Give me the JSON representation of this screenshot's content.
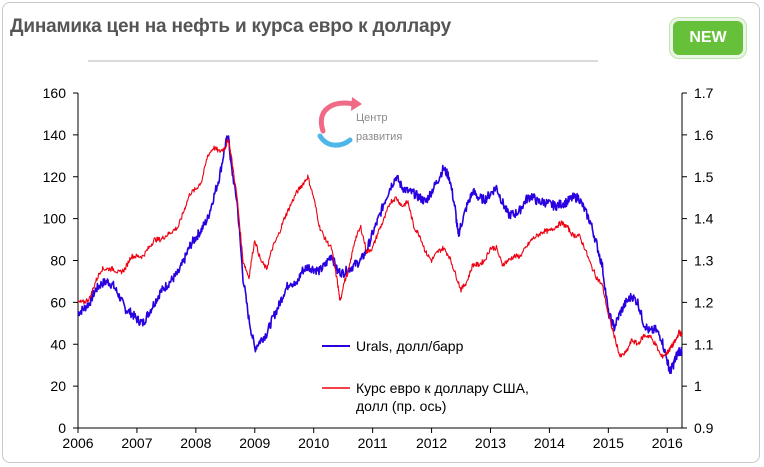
{
  "title": "Динамика цен на нефть и курса евро к доллару",
  "badge": "NEW",
  "watermark": {
    "line1": "Центр",
    "line2": "развития"
  },
  "colors": {
    "urals": "#2a00e0",
    "eur": "#ee0011",
    "badge": "#66c03a"
  },
  "chart_data": {
    "type": "line",
    "x_range": [
      2006.0,
      2016.25
    ],
    "x_ticks": [
      "2006",
      "2007",
      "2008",
      "2009",
      "2010",
      "2011",
      "2012",
      "2013",
      "2014",
      "2015",
      "2016"
    ],
    "y_left": {
      "range": [
        0,
        160
      ],
      "ticks": [
        "0",
        "20",
        "40",
        "60",
        "80",
        "100",
        "120",
        "140",
        "160"
      ]
    },
    "y_right": {
      "range": [
        0.9,
        1.7
      ],
      "ticks": [
        "0.9",
        "1",
        "1.1",
        "1.2",
        "1.3",
        "1.4",
        "1.5",
        "1.6",
        "1.7"
      ]
    },
    "series": [
      {
        "name": "Urals, долл/барр",
        "axis": "left",
        "color": "#2a00e0",
        "points": [
          [
            2006.0,
            55
          ],
          [
            2006.1,
            57
          ],
          [
            2006.2,
            60
          ],
          [
            2006.3,
            66
          ],
          [
            2006.4,
            69
          ],
          [
            2006.5,
            70
          ],
          [
            2006.6,
            68
          ],
          [
            2006.7,
            63
          ],
          [
            2006.8,
            57
          ],
          [
            2006.9,
            55
          ],
          [
            2007.0,
            52
          ],
          [
            2007.1,
            50
          ],
          [
            2007.2,
            55
          ],
          [
            2007.3,
            60
          ],
          [
            2007.4,
            65
          ],
          [
            2007.5,
            68
          ],
          [
            2007.6,
            71
          ],
          [
            2007.7,
            74
          ],
          [
            2007.8,
            80
          ],
          [
            2007.9,
            87
          ],
          [
            2008.0,
            91
          ],
          [
            2008.1,
            95
          ],
          [
            2008.2,
            100
          ],
          [
            2008.3,
            110
          ],
          [
            2008.4,
            120
          ],
          [
            2008.5,
            135
          ],
          [
            2008.55,
            140
          ],
          [
            2008.6,
            125
          ],
          [
            2008.7,
            108
          ],
          [
            2008.8,
            72
          ],
          [
            2008.9,
            52
          ],
          [
            2009.0,
            38
          ],
          [
            2009.1,
            42
          ],
          [
            2009.2,
            45
          ],
          [
            2009.3,
            52
          ],
          [
            2009.4,
            58
          ],
          [
            2009.5,
            65
          ],
          [
            2009.6,
            70
          ],
          [
            2009.7,
            68
          ],
          [
            2009.8,
            75
          ],
          [
            2009.9,
            77
          ],
          [
            2010.0,
            76
          ],
          [
            2010.1,
            75
          ],
          [
            2010.2,
            78
          ],
          [
            2010.3,
            83
          ],
          [
            2010.4,
            75
          ],
          [
            2010.5,
            74
          ],
          [
            2010.6,
            76
          ],
          [
            2010.7,
            78
          ],
          [
            2010.8,
            80
          ],
          [
            2010.9,
            85
          ],
          [
            2011.0,
            93
          ],
          [
            2011.1,
            100
          ],
          [
            2011.2,
            108
          ],
          [
            2011.3,
            115
          ],
          [
            2011.4,
            120
          ],
          [
            2011.5,
            115
          ],
          [
            2011.6,
            113
          ],
          [
            2011.7,
            112
          ],
          [
            2011.8,
            110
          ],
          [
            2011.9,
            108
          ],
          [
            2012.0,
            113
          ],
          [
            2012.1,
            118
          ],
          [
            2012.2,
            124
          ],
          [
            2012.3,
            120
          ],
          [
            2012.4,
            105
          ],
          [
            2012.45,
            92
          ],
          [
            2012.5,
            97
          ],
          [
            2012.6,
            106
          ],
          [
            2012.7,
            113
          ],
          [
            2012.8,
            110
          ],
          [
            2012.9,
            109
          ],
          [
            2013.0,
            112
          ],
          [
            2013.1,
            115
          ],
          [
            2013.2,
            108
          ],
          [
            2013.3,
            102
          ],
          [
            2013.4,
            102
          ],
          [
            2013.5,
            104
          ],
          [
            2013.6,
            109
          ],
          [
            2013.7,
            111
          ],
          [
            2013.8,
            108
          ],
          [
            2013.9,
            108
          ],
          [
            2014.0,
            107
          ],
          [
            2014.1,
            106
          ],
          [
            2014.2,
            107
          ],
          [
            2014.3,
            108
          ],
          [
            2014.4,
            110
          ],
          [
            2014.5,
            110
          ],
          [
            2014.6,
            104
          ],
          [
            2014.7,
            98
          ],
          [
            2014.8,
            88
          ],
          [
            2014.9,
            77
          ],
          [
            2015.0,
            55
          ],
          [
            2015.1,
            48
          ],
          [
            2015.2,
            55
          ],
          [
            2015.3,
            60
          ],
          [
            2015.4,
            63
          ],
          [
            2015.5,
            60
          ],
          [
            2015.6,
            50
          ],
          [
            2015.7,
            46
          ],
          [
            2015.8,
            47
          ],
          [
            2015.9,
            43
          ],
          [
            2016.0,
            32
          ],
          [
            2016.05,
            27
          ],
          [
            2016.1,
            30
          ],
          [
            2016.15,
            34
          ],
          [
            2016.2,
            37
          ],
          [
            2016.25,
            36
          ]
        ]
      },
      {
        "name": "Курс евро к доллару США, долл  (пр. ось)",
        "axis": "right",
        "color": "#ee0011",
        "points": [
          [
            2006.0,
            1.2
          ],
          [
            2006.1,
            1.2
          ],
          [
            2006.2,
            1.21
          ],
          [
            2006.3,
            1.25
          ],
          [
            2006.4,
            1.28
          ],
          [
            2006.5,
            1.28
          ],
          [
            2006.6,
            1.28
          ],
          [
            2006.7,
            1.27
          ],
          [
            2006.8,
            1.28
          ],
          [
            2006.9,
            1.31
          ],
          [
            2007.0,
            1.31
          ],
          [
            2007.1,
            1.31
          ],
          [
            2007.2,
            1.33
          ],
          [
            2007.3,
            1.35
          ],
          [
            2007.4,
            1.35
          ],
          [
            2007.5,
            1.36
          ],
          [
            2007.6,
            1.37
          ],
          [
            2007.7,
            1.38
          ],
          [
            2007.8,
            1.42
          ],
          [
            2007.9,
            1.46
          ],
          [
            2008.0,
            1.47
          ],
          [
            2008.1,
            1.49
          ],
          [
            2008.2,
            1.55
          ],
          [
            2008.3,
            1.57
          ],
          [
            2008.4,
            1.56
          ],
          [
            2008.5,
            1.57
          ],
          [
            2008.55,
            1.59
          ],
          [
            2008.6,
            1.55
          ],
          [
            2008.7,
            1.45
          ],
          [
            2008.8,
            1.3
          ],
          [
            2008.9,
            1.26
          ],
          [
            2009.0,
            1.35
          ],
          [
            2009.1,
            1.3
          ],
          [
            2009.2,
            1.28
          ],
          [
            2009.3,
            1.33
          ],
          [
            2009.4,
            1.36
          ],
          [
            2009.5,
            1.4
          ],
          [
            2009.6,
            1.43
          ],
          [
            2009.7,
            1.46
          ],
          [
            2009.8,
            1.48
          ],
          [
            2009.9,
            1.5
          ],
          [
            2010.0,
            1.45
          ],
          [
            2010.1,
            1.38
          ],
          [
            2010.2,
            1.35
          ],
          [
            2010.3,
            1.33
          ],
          [
            2010.4,
            1.25
          ],
          [
            2010.45,
            1.2
          ],
          [
            2010.5,
            1.24
          ],
          [
            2010.6,
            1.28
          ],
          [
            2010.7,
            1.35
          ],
          [
            2010.8,
            1.38
          ],
          [
            2010.9,
            1.32
          ],
          [
            2011.0,
            1.33
          ],
          [
            2011.1,
            1.37
          ],
          [
            2011.2,
            1.4
          ],
          [
            2011.3,
            1.44
          ],
          [
            2011.4,
            1.45
          ],
          [
            2011.5,
            1.43
          ],
          [
            2011.6,
            1.44
          ],
          [
            2011.7,
            1.38
          ],
          [
            2011.8,
            1.36
          ],
          [
            2011.9,
            1.32
          ],
          [
            2012.0,
            1.3
          ],
          [
            2012.1,
            1.32
          ],
          [
            2012.2,
            1.33
          ],
          [
            2012.3,
            1.31
          ],
          [
            2012.4,
            1.27
          ],
          [
            2012.5,
            1.23
          ],
          [
            2012.6,
            1.25
          ],
          [
            2012.7,
            1.29
          ],
          [
            2012.8,
            1.29
          ],
          [
            2012.9,
            1.3
          ],
          [
            2013.0,
            1.33
          ],
          [
            2013.1,
            1.33
          ],
          [
            2013.2,
            1.29
          ],
          [
            2013.3,
            1.3
          ],
          [
            2013.4,
            1.31
          ],
          [
            2013.5,
            1.31
          ],
          [
            2013.6,
            1.33
          ],
          [
            2013.7,
            1.35
          ],
          [
            2013.8,
            1.36
          ],
          [
            2013.9,
            1.37
          ],
          [
            2014.0,
            1.37
          ],
          [
            2014.1,
            1.38
          ],
          [
            2014.2,
            1.39
          ],
          [
            2014.3,
            1.38
          ],
          [
            2014.4,
            1.36
          ],
          [
            2014.5,
            1.36
          ],
          [
            2014.6,
            1.33
          ],
          [
            2014.7,
            1.29
          ],
          [
            2014.8,
            1.26
          ],
          [
            2014.9,
            1.24
          ],
          [
            2015.0,
            1.17
          ],
          [
            2015.1,
            1.12
          ],
          [
            2015.2,
            1.07
          ],
          [
            2015.3,
            1.08
          ],
          [
            2015.4,
            1.11
          ],
          [
            2015.5,
            1.1
          ],
          [
            2015.6,
            1.12
          ],
          [
            2015.7,
            1.12
          ],
          [
            2015.8,
            1.1
          ],
          [
            2015.9,
            1.07
          ],
          [
            2016.0,
            1.08
          ],
          [
            2016.05,
            1.09
          ],
          [
            2016.1,
            1.1
          ],
          [
            2016.15,
            1.11
          ],
          [
            2016.2,
            1.13
          ],
          [
            2016.25,
            1.12
          ]
        ]
      }
    ],
    "legend": [
      {
        "lines": [
          "Urals, долл/барр"
        ],
        "color": "#2a00e0"
      },
      {
        "lines": [
          "Курс евро к доллару США,",
          "долл  (пр. ось)"
        ],
        "color": "#ee0011"
      }
    ],
    "grid": false,
    "legend_placement": "center-right inside plot"
  }
}
